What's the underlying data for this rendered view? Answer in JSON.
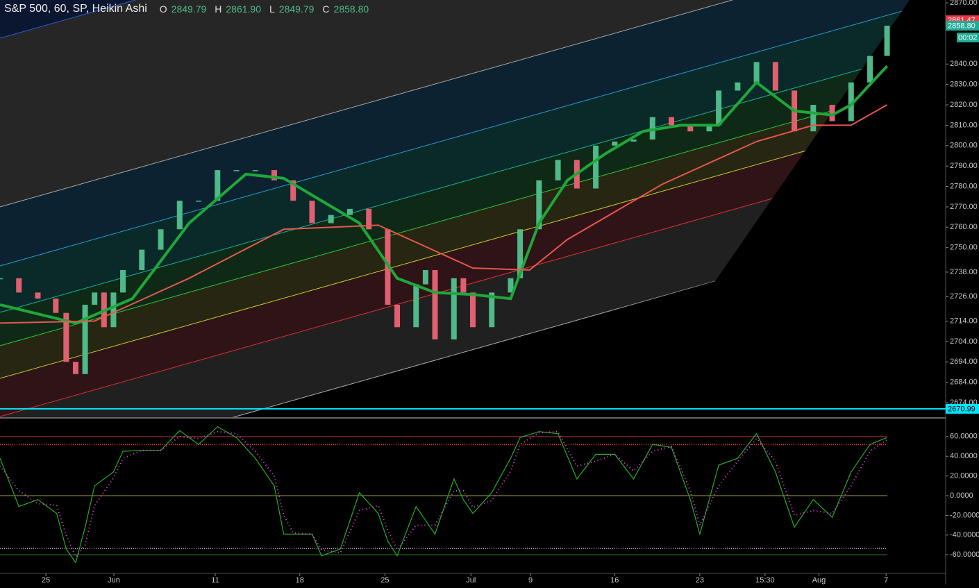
{
  "header": {
    "title": "S&P 500, 60, SP, Heikin Ashi",
    "ohlc": [
      {
        "key": "O",
        "value": "2849.79"
      },
      {
        "key": "H",
        "value": "2861.90"
      },
      {
        "key": "L",
        "value": "2849.79"
      },
      {
        "key": "C",
        "value": "2858.80"
      }
    ]
  },
  "chart_data": [
    {
      "type": "candlestick",
      "xlim": [
        0,
        100
      ],
      "ylim": [
        2667.2,
        2871.4
      ],
      "x": [
        0,
        2,
        4,
        5.9,
        7,
        8,
        9,
        10,
        11,
        12,
        13,
        15,
        17,
        19,
        21,
        23,
        25,
        27,
        29,
        31,
        33,
        35,
        37,
        39,
        41,
        42,
        44,
        45,
        46,
        48,
        49,
        50,
        52,
        54,
        55,
        57,
        59,
        61,
        63,
        65,
        67,
        69,
        71,
        73,
        75,
        76,
        78,
        80,
        82,
        84,
        86,
        88,
        90,
        92,
        93.8
      ],
      "values": [
        2735,
        2728,
        2725,
        2718,
        2694,
        2688,
        2722,
        2728,
        2711,
        2728,
        2739,
        2749,
        2759,
        2773,
        2773,
        2788,
        2788,
        2788,
        2783,
        2773,
        2762,
        2766,
        2769,
        2759,
        2722,
        2711,
        2732,
        2739,
        2705,
        2735,
        2728,
        2711,
        2728,
        2735,
        2759,
        2783,
        2793,
        2779,
        2800,
        2802,
        2803,
        2814,
        2810,
        2807,
        2810,
        2827,
        2831,
        2841,
        2827,
        2807,
        2820,
        2812,
        2831,
        2844,
        2858.8
      ],
      "up_color": "#4fb98a",
      "down_color": "#e06070",
      "series": [
        {
          "color": "#1fa83a",
          "x": [
            0,
            8,
            14,
            20,
            26,
            30,
            34,
            38,
            42,
            46,
            50,
            54,
            57,
            60,
            64,
            68,
            72,
            76,
            80,
            84,
            88,
            90,
            93.8
          ],
          "values": [
            2722,
            2713,
            2725,
            2762,
            2786,
            2784,
            2773,
            2762,
            2735,
            2728,
            2727,
            2725,
            2762,
            2783,
            2796,
            2807,
            2810,
            2810,
            2831,
            2817,
            2815,
            2820,
            2839
          ]
        },
        {
          "color": "#e8564f",
          "x": [
            0,
            10,
            20,
            30,
            40,
            50,
            56,
            60,
            70,
            80,
            86,
            90,
            93.8
          ],
          "values": [
            2713,
            2714,
            2735,
            2759,
            2761,
            2740,
            2739,
            2754,
            2781,
            2802,
            2810,
            2810,
            2820
          ]
        }
      ],
      "yticks": [
        {
          "value": 2870,
          "label": "2870.00"
        },
        {
          "value": 2840,
          "label": "2840.00"
        },
        {
          "value": 2830,
          "label": "2830.00"
        },
        {
          "value": 2820,
          "label": "2820.00"
        },
        {
          "value": 2810,
          "label": "2810.00"
        },
        {
          "value": 2800,
          "label": "2800.00"
        },
        {
          "value": 2790,
          "label": "2790.00"
        },
        {
          "value": 2780,
          "label": "2780.00"
        },
        {
          "value": 2770,
          "label": "2770.00"
        },
        {
          "value": 2760,
          "label": "2760.00"
        },
        {
          "value": 2750,
          "label": "2750.00"
        },
        {
          "value": 2738,
          "label": "2738.00"
        },
        {
          "value": 2726,
          "label": "2726.00"
        },
        {
          "value": 2714,
          "label": "2714.00"
        },
        {
          "value": 2704,
          "label": "2704.00"
        },
        {
          "value": 2694,
          "label": "2694.00"
        },
        {
          "value": 2684,
          "label": "2684.00"
        },
        {
          "value": 2674,
          "label": "2674.00"
        }
      ],
      "markers": [
        {
          "value": 2861.47,
          "label": "2861.47",
          "color": "#f23645"
        },
        {
          "value": 2858.8,
          "label": "2858.80",
          "color": "#22ab94"
        },
        {
          "value": 2670.99,
          "label": "2670.99",
          "color": "#00e5ff",
          "hline": true
        }
      ],
      "countdown": "00:02"
    },
    {
      "type": "line",
      "xlim": [
        0,
        100
      ],
      "ylim": [
        -78.9,
        78.2
      ],
      "series": [
        {
          "color": "#22b022",
          "style": "solid",
          "x": [
            0,
            2,
            4,
            6,
            7,
            8,
            9,
            10,
            12,
            13,
            15,
            17,
            19,
            21,
            23,
            25,
            27,
            29,
            30,
            31,
            33,
            34,
            36,
            38,
            40,
            41,
            42,
            44,
            46,
            48,
            49,
            50,
            52,
            54,
            55,
            57,
            59,
            61,
            63,
            65,
            67,
            69,
            71,
            73,
            74,
            76,
            78,
            80,
            82,
            84,
            86,
            88,
            90,
            92,
            93.8
          ],
          "values": [
            38,
            -11,
            -4,
            -18,
            -54,
            -68,
            -32,
            10,
            24,
            45,
            46,
            46,
            66,
            52,
            70,
            59,
            38,
            10,
            -39,
            -39,
            -39,
            -61,
            -54,
            3,
            -18,
            -46,
            -61,
            -11,
            -39,
            17,
            -4,
            -18,
            3,
            38,
            59,
            65,
            63,
            17,
            42,
            42,
            17,
            52,
            49,
            -4,
            -39,
            31,
            38,
            63,
            24,
            -32,
            -4,
            -22,
            24,
            52,
            59
          ]
        },
        {
          "color": "#ff40ff",
          "style": "dotted",
          "x": [
            0,
            2,
            4,
            6,
            7,
            8,
            9,
            10,
            12,
            13,
            15,
            17,
            19,
            21,
            23,
            25,
            27,
            29,
            30,
            31,
            33,
            34,
            36,
            38,
            40,
            41,
            42,
            44,
            46,
            48,
            49,
            50,
            52,
            54,
            55,
            57,
            59,
            61,
            63,
            65,
            67,
            69,
            71,
            73,
            74,
            76,
            78,
            80,
            82,
            84,
            86,
            88,
            90,
            92,
            93.8
          ],
          "values": [
            30,
            5,
            -8,
            -10,
            -40,
            -62,
            -50,
            -10,
            18,
            38,
            46,
            46,
            60,
            58,
            65,
            63,
            45,
            20,
            -20,
            -38,
            -39,
            -55,
            -58,
            -15,
            -10,
            -35,
            -55,
            -30,
            -30,
            5,
            5,
            -12,
            -5,
            25,
            52,
            64,
            65,
            30,
            35,
            42,
            25,
            45,
            50,
            5,
            -30,
            10,
            35,
            58,
            35,
            -20,
            -15,
            -18,
            10,
            45,
            57
          ]
        }
      ],
      "levels": [
        {
          "value": 60,
          "color": "#b03030"
        },
        {
          "value": 0,
          "color": "#a09a40"
        },
        {
          "value": -60,
          "color": "#2a8a2a"
        }
      ],
      "dotted_levels": [
        {
          "value": 52,
          "color": "#e03030"
        },
        {
          "value": -53.5,
          "color": "#999999"
        }
      ],
      "yticks": [
        {
          "value": 60,
          "label": "60.0000"
        },
        {
          "value": 40,
          "label": "40.0000"
        },
        {
          "value": 20,
          "label": "20.0000"
        },
        {
          "value": 0,
          "label": "0.0000"
        },
        {
          "value": -20,
          "label": "-20.0000"
        },
        {
          "value": -40,
          "label": "-40.0000"
        },
        {
          "value": -60,
          "label": "-60.0000"
        }
      ],
      "xticks": [
        {
          "value": 4.85,
          "label": "25"
        },
        {
          "value": 12.04,
          "label": "Jun"
        },
        {
          "value": 22.76,
          "label": "11"
        },
        {
          "value": 31.7,
          "label": "18"
        },
        {
          "value": 40.7,
          "label": "25"
        },
        {
          "value": 49.8,
          "label": "Jul"
        },
        {
          "value": 56.1,
          "label": "9"
        },
        {
          "value": 65.0,
          "label": "16"
        },
        {
          "value": 74.0,
          "label": "23"
        },
        {
          "value": 80.9,
          "label": "15:30"
        },
        {
          "value": 86.6,
          "label": "Aug"
        },
        {
          "value": 93.7,
          "label": "7"
        }
      ]
    }
  ]
}
